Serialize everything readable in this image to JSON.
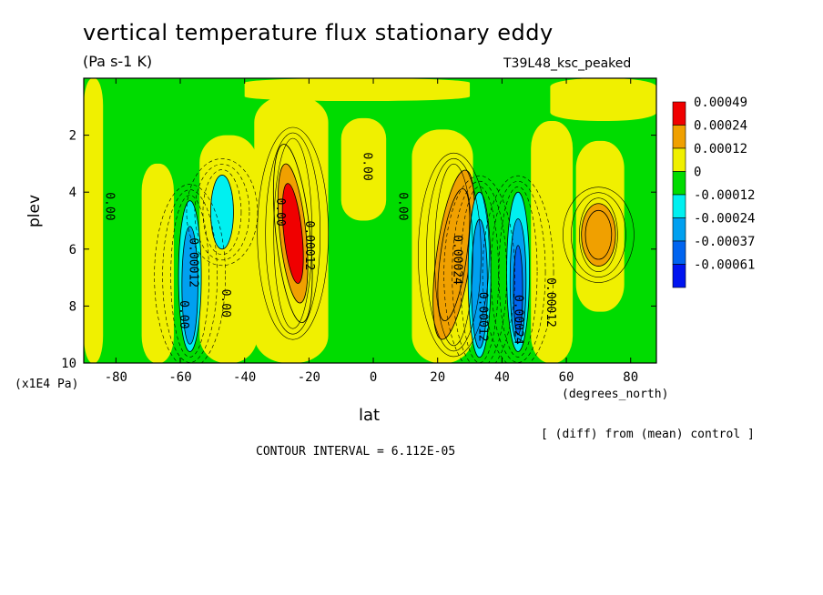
{
  "header": {
    "title": "vertical temperature flux stationary eddy",
    "units": "(Pa s-1 K)",
    "run_name": "T39L48_ksc_peaked"
  },
  "footer": {
    "diff_note": "[ (diff) from (mean) control ]",
    "contour_interval": "CONTOUR INTERVAL = 6.112E-05"
  },
  "chart_data": {
    "type": "heatmap",
    "title": "vertical temperature flux stationary eddy",
    "subtitle": "(Pa s-1 K)",
    "xlabel": "lat",
    "ylabel": "plev",
    "x_unit": "(degrees_north)",
    "y_unit": "(x1E4 Pa)",
    "xlim": [
      -90,
      88
    ],
    "ylim": [
      10,
      0
    ],
    "x_ticks": [
      -80,
      -60,
      -40,
      -20,
      0,
      20,
      40,
      60,
      80
    ],
    "y_ticks": [
      2,
      4,
      6,
      8,
      10
    ],
    "legend": {
      "position": "right",
      "levels": [
        "0.00049",
        "0.00024",
        "0.00012",
        "0",
        "-0.00012",
        "-0.00024",
        "-0.00037",
        "-0.00061"
      ],
      "colors": [
        "#f00000",
        "#f0a000",
        "#f0f000",
        "#00dc00",
        "#00f0f0",
        "#00a0f0",
        "#0064f0",
        "#0014f0"
      ]
    },
    "features": [
      {
        "kind": "max",
        "lat": -25,
        "plev_top": 2.3,
        "plev_bottom": 8.6,
        "value": 0.00049
      },
      {
        "kind": "max",
        "lat": 25,
        "plev_top": 3.2,
        "plev_bottom": 9.2,
        "value": 0.00024
      },
      {
        "kind": "max",
        "lat": 70,
        "plev_top": 4.4,
        "plev_bottom": 6.6,
        "value": 0.00024
      },
      {
        "kind": "min",
        "lat": -57,
        "plev_top": 4.3,
        "plev_bottom": 9.6,
        "value": -0.00024
      },
      {
        "kind": "min",
        "lat": -47,
        "plev_top": 3.4,
        "plev_bottom": 6.0,
        "value": -0.00012
      },
      {
        "kind": "min",
        "lat": 33,
        "plev_top": 4.0,
        "plev_bottom": 9.8,
        "value": -0.00024
      },
      {
        "kind": "min",
        "lat": 45,
        "plev_top": 4.0,
        "plev_bottom": 9.6,
        "value": -0.00037
      }
    ],
    "contour_labels": [
      "0.00",
      "0.00",
      "0.00",
      "0.00",
      "0.00",
      "0.00",
      "0.00012",
      "0.00012",
      "0.00012",
      "0.00024",
      "0.00024",
      "0.00012"
    ],
    "contour_interval": "6.112E-05"
  }
}
